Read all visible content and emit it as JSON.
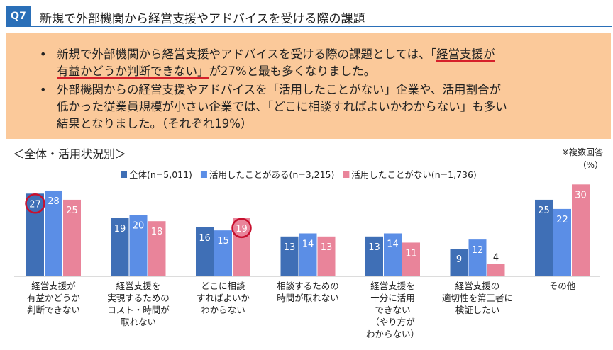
{
  "header": {
    "badge": "Q7",
    "title": "新規で外部機関から経営支援やアドバイスを受ける際の課題"
  },
  "summary": {
    "bullet": "•",
    "line1_pre": "新規で外部機関から経営支援やアドバイスを受ける際の課題としては、「",
    "line1_hl": "経営支援が",
    "line2_hl": "有益かどうか判断できない」",
    "line2_post": "が27%と最も多くなりました。",
    "line3": "外部機関からの経営支援やアドバイスを「活用したことがない」企業や、活用割合が",
    "line4": "低かった従業員規模が小さい企業では、「どこに相談すればよいかわからない」も多い",
    "line5": "結果となりました。（それぞれ19%）"
  },
  "subtitle": "＜全体・活用状況別＞",
  "note_multi": "※複数回答",
  "note_unit": "（%）",
  "colors": {
    "accent": "#2a6fb8",
    "summary_bg": "#fbc99a",
    "highlight_circle": "#c8102e"
  },
  "chart_data": {
    "type": "bar",
    "categories": [
      [
        "経営支援が",
        "有益かどうか",
        "判断できない"
      ],
      [
        "経営支援を",
        "実現するための",
        "コスト・時間が",
        "取れない"
      ],
      [
        "どこに相談",
        "すればよいか",
        "わからない"
      ],
      [
        "相談するための",
        "時間が取れない"
      ],
      [
        "経営支援を",
        "十分に活用",
        "できない",
        "（やり方が",
        "わからない）"
      ],
      [
        "経営支援の",
        "適切性を第三者に",
        "検証したい"
      ],
      [
        "その他"
      ]
    ],
    "series": [
      {
        "name": "全体(n=5,011)",
        "color": "#3f6fb6",
        "values": [
          27,
          19,
          16,
          13,
          13,
          9,
          25
        ]
      },
      {
        "name": "活用したことがある(n=3,215)",
        "color": "#5b8ee6",
        "values": [
          28,
          20,
          15,
          14,
          14,
          12,
          22
        ]
      },
      {
        "name": "活用したことがない(n=1,736)",
        "color": "#e9849a",
        "values": [
          25,
          18,
          19,
          13,
          11,
          4,
          30
        ]
      }
    ],
    "highlighted": [
      {
        "series": 0,
        "category": 0
      },
      {
        "series": 2,
        "category": 2
      }
    ],
    "ylim": [
      0,
      31
    ],
    "legend_position": "top",
    "grid": false
  }
}
